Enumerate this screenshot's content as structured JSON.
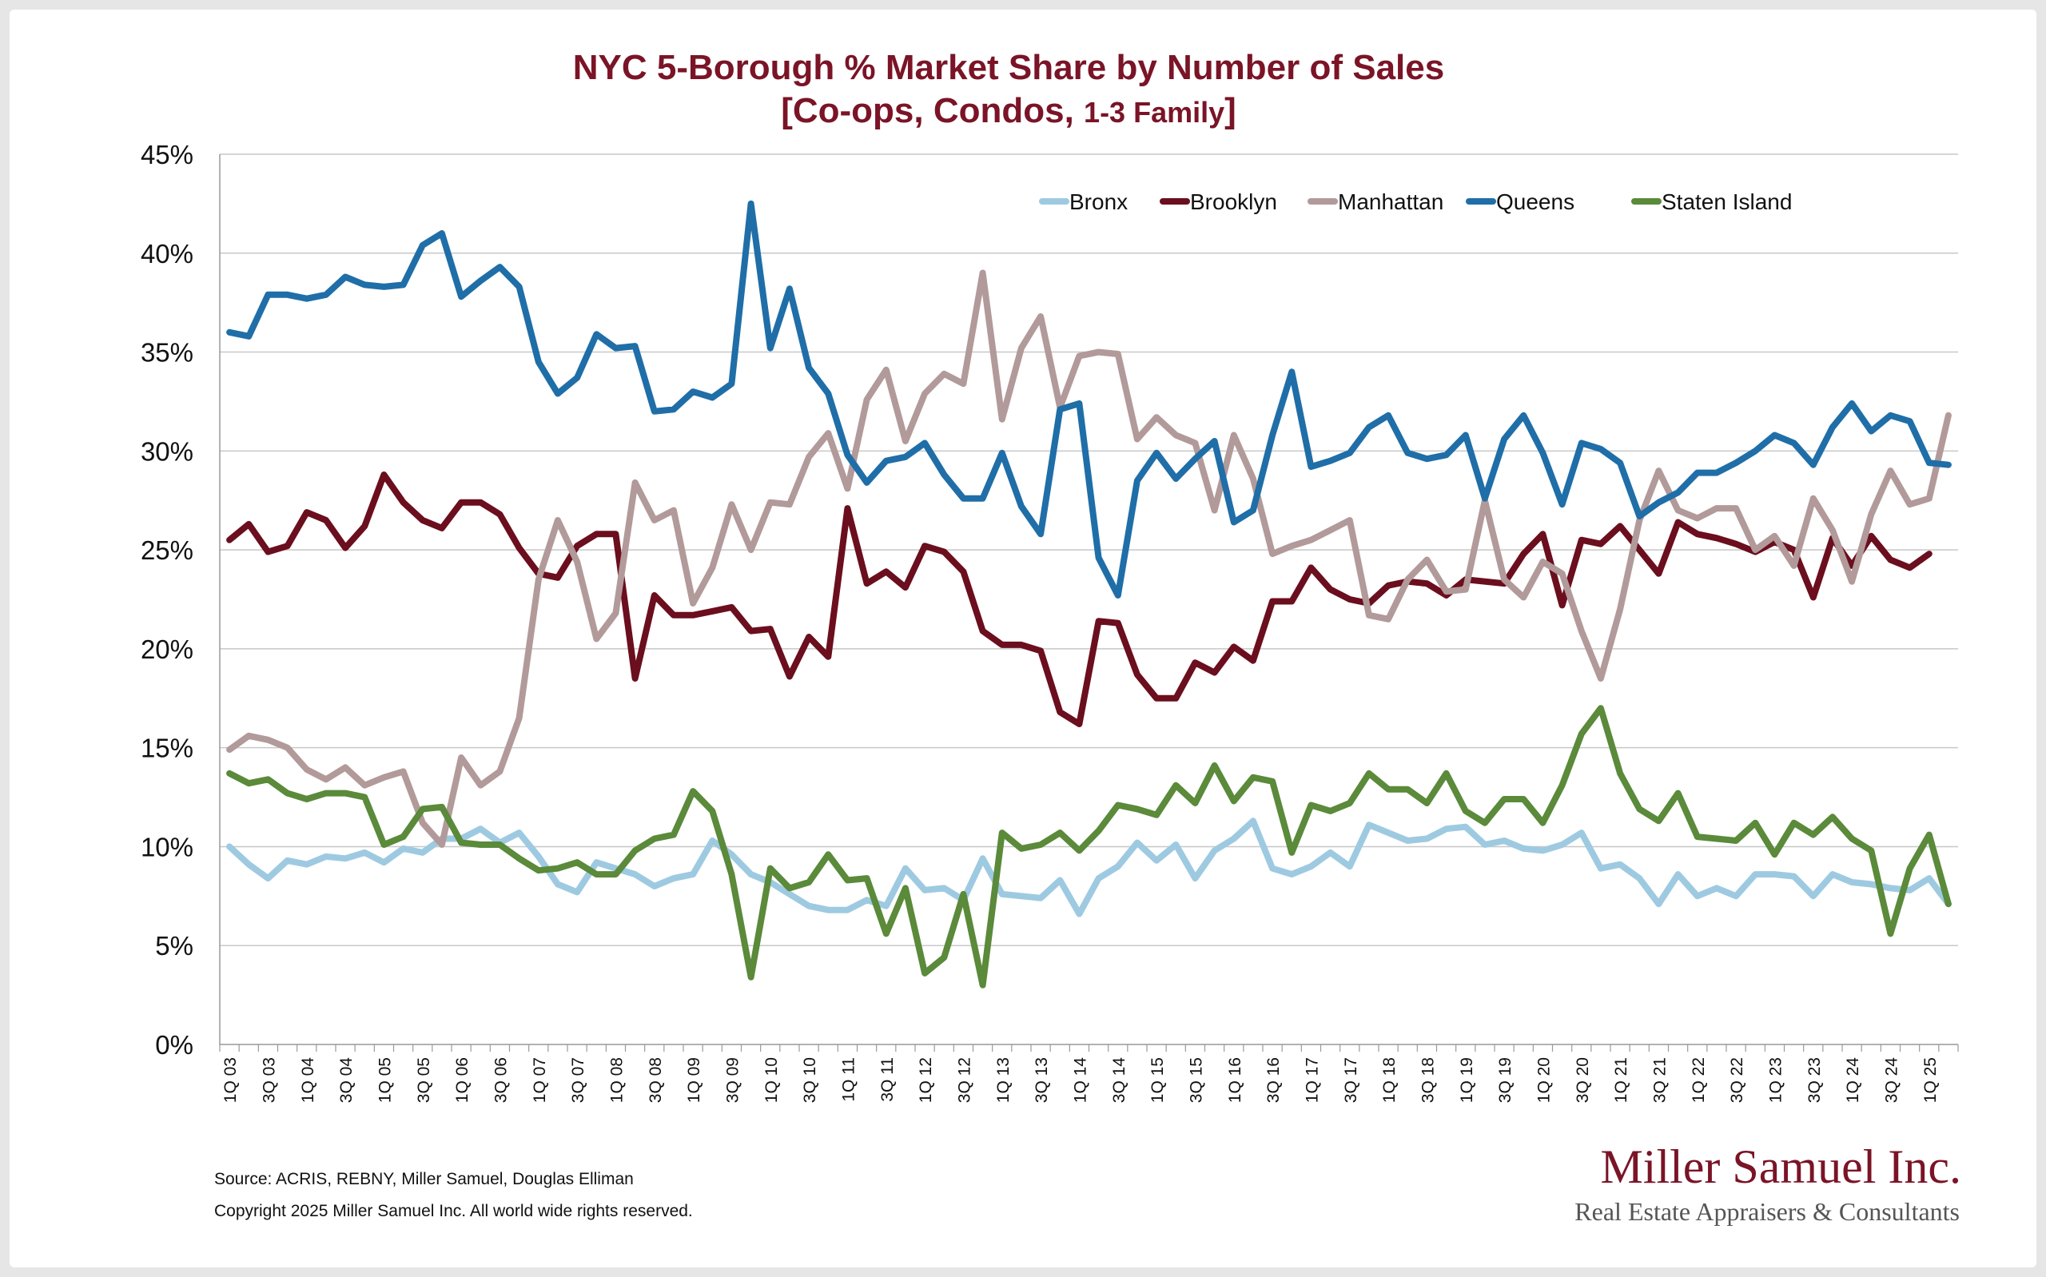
{
  "chart_data": {
    "type": "line",
    "title": "NYC 5-Borough % Market Share by Number of Sales",
    "subtitle_main": "[Co-ops, Condos, ",
    "subtitle_small": "1-3 Family",
    "subtitle_end": "]",
    "xlabel": "",
    "ylabel": "",
    "ylim": [
      0,
      45
    ],
    "yticks": [
      "0%",
      "5%",
      "10%",
      "15%",
      "20%",
      "25%",
      "30%",
      "35%",
      "40%",
      "45%"
    ],
    "grid": true,
    "legend_position": "top-right",
    "tick_labels": [
      "1Q 03",
      "3Q 03",
      "1Q 04",
      "3Q 04",
      "1Q 05",
      "3Q 05",
      "1Q 06",
      "3Q 06",
      "1Q 07",
      "3Q 07",
      "1Q 08",
      "3Q 08",
      "1Q 09",
      "3Q 09",
      "1Q 10",
      "3Q 10",
      "1Q 11",
      "3Q 11",
      "1Q 12",
      "3Q 12",
      "1Q 13",
      "3Q 13",
      "1Q 14",
      "3Q 14",
      "1Q 15",
      "3Q 15",
      "1Q 16",
      "3Q 16",
      "1Q 17",
      "3Q 17",
      "1Q 18",
      "3Q 18",
      "1Q 19",
      "3Q 19",
      "1Q 20",
      "3Q 20",
      "1Q 21",
      "3Q 21",
      "1Q 22",
      "3Q 22",
      "1Q 23",
      "3Q 23",
      "1Q 24",
      "3Q 24",
      "1Q 25"
    ],
    "series": [
      {
        "name": "Bronx",
        "color": "#9ecae1",
        "values": [
          10.0,
          9.1,
          8.4,
          9.3,
          9.1,
          9.5,
          9.4,
          9.7,
          9.2,
          9.9,
          9.7,
          10.4,
          10.4,
          10.9,
          10.2,
          10.7,
          9.5,
          8.1,
          7.7,
          9.2,
          8.9,
          8.6,
          8.0,
          8.4,
          8.6,
          10.3,
          9.6,
          8.6,
          8.2,
          7.6,
          7.0,
          6.8,
          6.8,
          7.3,
          7.0,
          8.9,
          7.8,
          7.9,
          7.3,
          9.4,
          7.6,
          7.5,
          7.4,
          8.3,
          6.6,
          8.4,
          9.0,
          10.2,
          9.3,
          10.1,
          8.4,
          9.8,
          10.4,
          11.3,
          8.9,
          8.6,
          9.0,
          9.7,
          9.0,
          11.1,
          10.7,
          10.3,
          10.4,
          10.9,
          11.0,
          10.1,
          10.3,
          9.9,
          9.8,
          10.1,
          10.7,
          8.9,
          9.1,
          8.4,
          7.1,
          8.6,
          7.5,
          7.9,
          7.5,
          8.6,
          8.6,
          8.5,
          7.5,
          8.6,
          8.2,
          8.1,
          7.9,
          7.8,
          8.4,
          7.1
        ]
      },
      {
        "name": "Brooklyn",
        "color": "#6b0e1e",
        "values": [
          25.5,
          26.3,
          24.9,
          25.2,
          26.9,
          26.5,
          25.1,
          26.2,
          28.8,
          27.4,
          26.5,
          26.1,
          27.4,
          27.4,
          26.8,
          25.1,
          23.8,
          23.6,
          25.2,
          25.8,
          25.8,
          18.5,
          22.7,
          21.7,
          21.7,
          21.9,
          22.1,
          20.9,
          21.0,
          18.6,
          20.6,
          19.6,
          27.1,
          23.3,
          23.9,
          23.1,
          25.2,
          24.9,
          23.9,
          20.9,
          20.2,
          20.2,
          19.9,
          16.8,
          16.2,
          21.4,
          21.3,
          18.7,
          17.5,
          17.5,
          19.3,
          18.8,
          20.1,
          19.4,
          22.4,
          22.4,
          24.1,
          23.0,
          22.5,
          22.3,
          23.2,
          23.4,
          23.3,
          22.7,
          23.5,
          23.4,
          23.3,
          24.8,
          25.8,
          22.2,
          25.5,
          25.3,
          26.2,
          25.0,
          23.8,
          26.4,
          25.8,
          25.6,
          25.3,
          24.9,
          25.4,
          25.0,
          22.6,
          25.6,
          24.2,
          25.7,
          24.5,
          24.1,
          24.8
        ]
      },
      {
        "name": "Manhattan",
        "color": "#b29a9a",
        "values": [
          14.9,
          15.6,
          15.4,
          15.0,
          13.9,
          13.4,
          14.0,
          13.1,
          13.5,
          13.8,
          11.2,
          10.1,
          14.5,
          13.1,
          13.8,
          16.5,
          23.5,
          26.5,
          24.4,
          20.5,
          21.8,
          28.4,
          26.5,
          27.0,
          22.3,
          24.1,
          27.3,
          25.0,
          27.4,
          27.3,
          29.7,
          30.9,
          28.1,
          32.6,
          34.1,
          30.5,
          32.9,
          33.9,
          33.4,
          39.0,
          31.6,
          35.2,
          36.8,
          32.2,
          34.8,
          35.0,
          34.9,
          30.6,
          31.7,
          30.8,
          30.4,
          27.0,
          30.8,
          28.6,
          24.8,
          25.2,
          25.5,
          26.0,
          26.5,
          21.7,
          21.5,
          23.5,
          24.5,
          22.9,
          23.0,
          27.5,
          23.5,
          22.6,
          24.4,
          23.8,
          20.9,
          18.5,
          22.0,
          26.5,
          29.0,
          27.0,
          26.6,
          27.1,
          27.1,
          25.0,
          25.7,
          24.2,
          27.6,
          26.0,
          23.4,
          26.8,
          29.0,
          27.3,
          27.6,
          31.8
        ]
      },
      {
        "name": "Queens",
        "color": "#1f6ea8",
        "values": [
          36.0,
          35.8,
          37.9,
          37.9,
          37.7,
          37.9,
          38.8,
          38.4,
          38.3,
          38.4,
          40.4,
          41.0,
          37.8,
          38.6,
          39.3,
          38.3,
          34.5,
          32.9,
          33.7,
          35.9,
          35.2,
          35.3,
          32.0,
          32.1,
          33.0,
          32.7,
          33.4,
          42.5,
          35.2,
          38.2,
          34.2,
          32.9,
          29.8,
          28.4,
          29.5,
          29.7,
          30.4,
          28.8,
          27.6,
          27.6,
          29.9,
          27.2,
          25.8,
          32.1,
          32.4,
          24.6,
          22.7,
          28.5,
          29.9,
          28.6,
          29.6,
          30.5,
          26.4,
          27.0,
          30.8,
          34.0,
          29.2,
          29.5,
          29.9,
          31.2,
          31.8,
          29.9,
          29.6,
          29.8,
          30.8,
          27.6,
          30.6,
          31.8,
          29.9,
          27.3,
          30.4,
          30.1,
          29.4,
          26.7,
          27.4,
          27.9,
          28.9,
          28.9,
          29.4,
          30.0,
          30.8,
          30.4,
          29.3,
          31.2,
          32.4,
          31.0,
          31.8,
          31.5,
          29.4,
          29.3
        ]
      },
      {
        "name": "Staten Island",
        "color": "#5a8a3a",
        "values": [
          13.7,
          13.2,
          13.4,
          12.7,
          12.4,
          12.7,
          12.7,
          12.5,
          10.1,
          10.5,
          11.9,
          12.0,
          10.2,
          10.1,
          10.1,
          9.4,
          8.8,
          8.9,
          9.2,
          8.6,
          8.6,
          9.8,
          10.4,
          10.6,
          12.8,
          11.8,
          8.6,
          3.4,
          8.9,
          7.9,
          8.2,
          9.6,
          8.3,
          8.4,
          5.6,
          7.9,
          3.6,
          4.4,
          7.6,
          3.0,
          10.7,
          9.9,
          10.1,
          10.7,
          9.8,
          10.8,
          12.1,
          11.9,
          11.6,
          13.1,
          12.2,
          14.1,
          12.3,
          13.5,
          13.3,
          9.7,
          12.1,
          11.8,
          12.2,
          13.7,
          12.9,
          12.9,
          12.2,
          13.7,
          11.8,
          11.2,
          12.4,
          12.4,
          11.2,
          13.1,
          15.7,
          17.0,
          13.7,
          11.9,
          11.3,
          12.7,
          10.5,
          10.4,
          10.3,
          11.2,
          9.6,
          11.2,
          10.6,
          11.5,
          10.4,
          9.8,
          5.6,
          8.9,
          10.6,
          7.1
        ]
      }
    ]
  },
  "footer": {
    "source": "Source: ACRIS, REBNY, Miller Samuel, Douglas Elliman",
    "copyright": "Copyright 2025 Miller Samuel Inc.  All world wide rights reserved."
  },
  "logo": {
    "name": "Miller Samuel Inc.",
    "tagline": "Real Estate Appraisers & Consultants"
  }
}
